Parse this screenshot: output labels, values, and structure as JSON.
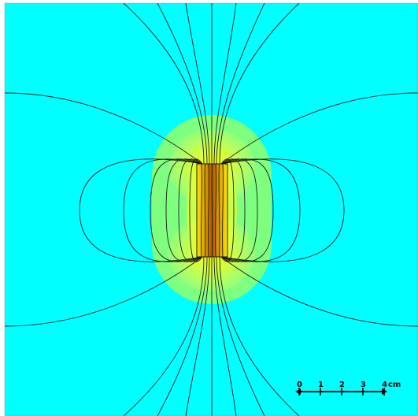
{
  "field_plot": {
    "background_color": "#00ffff",
    "region_color": "#7fff7f",
    "halo_color": "#c8ff50",
    "magnet_core_color": "#b35a00",
    "field_line_color": "#1a1a1a"
  },
  "scale_bar": {
    "ticks": [
      "0",
      "1",
      "2",
      "3",
      "4"
    ],
    "unit": "cm"
  }
}
